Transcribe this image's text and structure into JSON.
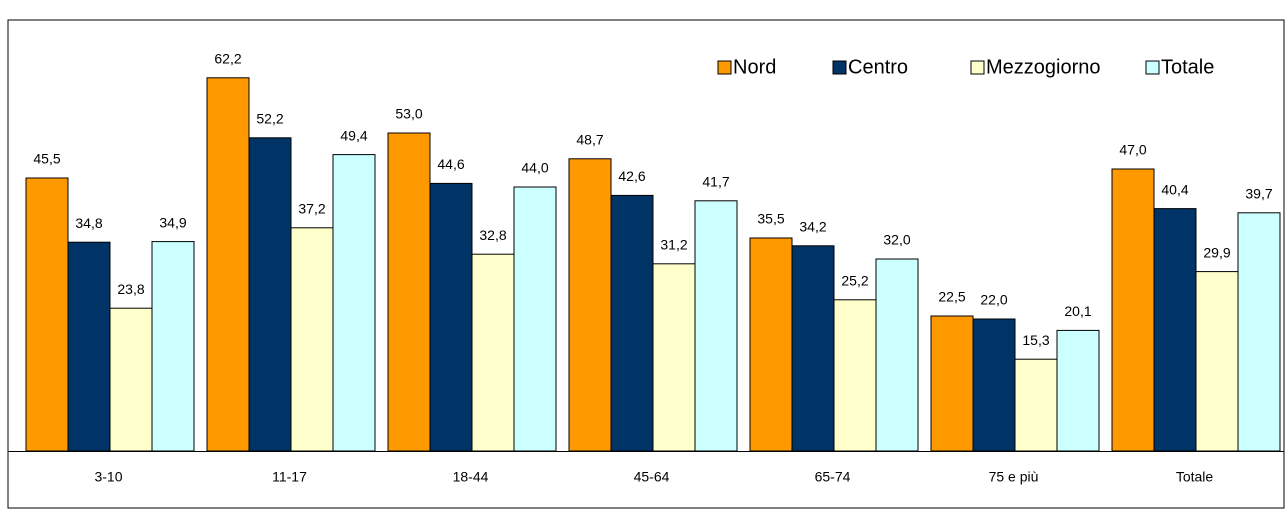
{
  "chart_data": {
    "type": "bar",
    "categories": [
      "3-10",
      "11-17",
      "18-44",
      "45-64",
      "65-74",
      "75 e più",
      "Totale"
    ],
    "series": [
      {
        "name": "Nord",
        "color": "#ff9900",
        "values": [
          45.5,
          62.2,
          53.0,
          48.7,
          35.5,
          22.5,
          47.0
        ],
        "value_labels": [
          "45,5",
          "62,2",
          "53,0",
          "48,7",
          "35,5",
          "22,5",
          "47,0"
        ]
      },
      {
        "name": "Centro",
        "color": "#003366",
        "values": [
          34.8,
          52.2,
          44.6,
          42.6,
          34.2,
          22.0,
          40.4
        ],
        "value_labels": [
          "34,8",
          "52,2",
          "44,6",
          "42,6",
          "34,2",
          "22,0",
          "40,4"
        ]
      },
      {
        "name": "Mezzogiorno",
        "color": "#ffffcc",
        "values": [
          23.8,
          37.2,
          32.8,
          31.2,
          25.2,
          15.3,
          29.9
        ],
        "value_labels": [
          "23,8",
          "37,2",
          "32,8",
          "31,2",
          "25,2",
          "15,3",
          "29,9"
        ]
      },
      {
        "name": "Totale",
        "color": "#ccffff",
        "values": [
          34.9,
          49.4,
          44.0,
          41.7,
          32.0,
          20.1,
          39.7
        ],
        "value_labels": [
          "34,9",
          "49,4",
          "44,0",
          "41,7",
          "32,0",
          "20,1",
          "39,7"
        ]
      }
    ],
    "legend": "top-right"
  }
}
